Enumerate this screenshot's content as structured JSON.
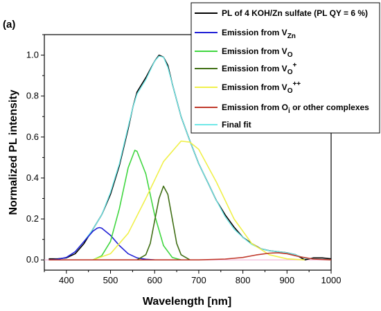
{
  "chart_data": {
    "type": "line",
    "panel_label": "(a)",
    "xlabel": "Wavelength [nm]",
    "ylabel": "Normalized PL intensity",
    "xlim": [
      350,
      1000
    ],
    "ylim": [
      -0.05,
      1.1
    ],
    "xticks": [
      400,
      500,
      600,
      700,
      800,
      900,
      1000
    ],
    "yticks": [
      0.0,
      0.2,
      0.4,
      0.6,
      0.8,
      1.0
    ],
    "ytick_labels": [
      "0.0",
      "0.2",
      "0.4",
      "0.6",
      "0.8",
      "1.0"
    ],
    "legend_position": "top-right",
    "series": [
      {
        "name": "PL of 4 KOH/Zn sulfate (PL QY = 6 %)",
        "color": "#000000",
        "x": [
          360,
          380,
          400,
          420,
          440,
          460,
          480,
          500,
          520,
          540,
          550,
          560,
          580,
          600,
          610,
          620,
          630,
          640,
          660,
          680,
          700,
          720,
          740,
          760,
          780,
          800,
          820,
          840,
          860,
          880,
          900,
          920,
          940,
          960,
          980,
          1000
        ],
        "y": [
          0.005,
          0.005,
          0.01,
          0.03,
          0.08,
          0.15,
          0.22,
          0.32,
          0.46,
          0.64,
          0.74,
          0.82,
          0.89,
          0.97,
          1.0,
          0.99,
          0.95,
          0.86,
          0.7,
          0.58,
          0.47,
          0.38,
          0.29,
          0.22,
          0.16,
          0.11,
          0.08,
          0.055,
          0.045,
          0.04,
          0.035,
          0.025,
          0.0,
          0.01,
          0.01,
          0.005
        ]
      },
      {
        "name": "Emission from V",
        "name_sub": "Zn",
        "name_sup": "",
        "color": "#1f1fd6",
        "x": [
          360,
          380,
          400,
          420,
          440,
          460,
          470,
          475,
          480,
          500,
          520,
          540,
          560,
          580,
          600
        ],
        "y": [
          0.0,
          0.003,
          0.012,
          0.04,
          0.09,
          0.14,
          0.155,
          0.158,
          0.155,
          0.12,
          0.07,
          0.03,
          0.01,
          0.003,
          0.0
        ]
      },
      {
        "name": "Emission from V",
        "name_sub": "O",
        "name_sup": "",
        "color": "#3fd63f",
        "x": [
          460,
          480,
          500,
          520,
          540,
          555,
          560,
          580,
          600,
          620,
          640,
          660
        ],
        "y": [
          0.0,
          0.02,
          0.09,
          0.25,
          0.45,
          0.535,
          0.53,
          0.42,
          0.22,
          0.07,
          0.012,
          0.0
        ]
      },
      {
        "name": "Emission from V",
        "name_sub": "O",
        "name_sup": "+",
        "color": "#3f6e14",
        "x": [
          560,
          580,
          590,
          600,
          610,
          620,
          630,
          640,
          650,
          660,
          680
        ],
        "y": [
          0.0,
          0.025,
          0.08,
          0.19,
          0.3,
          0.36,
          0.32,
          0.2,
          0.08,
          0.025,
          0.0
        ]
      },
      {
        "name": "Emission from V",
        "name_sub": "O",
        "name_sup": "++",
        "color": "#f0f04a",
        "x": [
          460,
          500,
          540,
          580,
          620,
          660,
          680,
          700,
          740,
          780,
          820,
          860,
          900,
          940
        ],
        "y": [
          0.0,
          0.03,
          0.13,
          0.3,
          0.48,
          0.58,
          0.575,
          0.54,
          0.38,
          0.2,
          0.08,
          0.025,
          0.005,
          0.0
        ]
      },
      {
        "name": "Emission from O",
        "name_sub": "i",
        "name_sup": "",
        "name_suffix": " or other complexes",
        "color": "#c0392b",
        "x": [
          360,
          700,
          760,
          800,
          830,
          860,
          880,
          900,
          930,
          960,
          1000
        ],
        "y": [
          0.0,
          0.0,
          0.004,
          0.012,
          0.024,
          0.033,
          0.035,
          0.03,
          0.015,
          0.004,
          0.0
        ]
      },
      {
        "name": "Final fit",
        "color": "#6ee8e8",
        "x": [
          360,
          380,
          400,
          420,
          440,
          460,
          480,
          500,
          520,
          540,
          550,
          560,
          580,
          600,
          610,
          620,
          630,
          640,
          660,
          680,
          700,
          720,
          740,
          760,
          780,
          800,
          820,
          840,
          860,
          880,
          900,
          920,
          940,
          960,
          980,
          1000
        ],
        "y": [
          0.0,
          0.003,
          0.012,
          0.04,
          0.09,
          0.15,
          0.22,
          0.33,
          0.47,
          0.65,
          0.74,
          0.81,
          0.88,
          0.97,
          0.995,
          0.99,
          0.94,
          0.86,
          0.7,
          0.58,
          0.47,
          0.38,
          0.29,
          0.21,
          0.15,
          0.11,
          0.075,
          0.055,
          0.045,
          0.04,
          0.035,
          0.025,
          0.008,
          0.005,
          0.003,
          0.0
        ]
      }
    ]
  }
}
